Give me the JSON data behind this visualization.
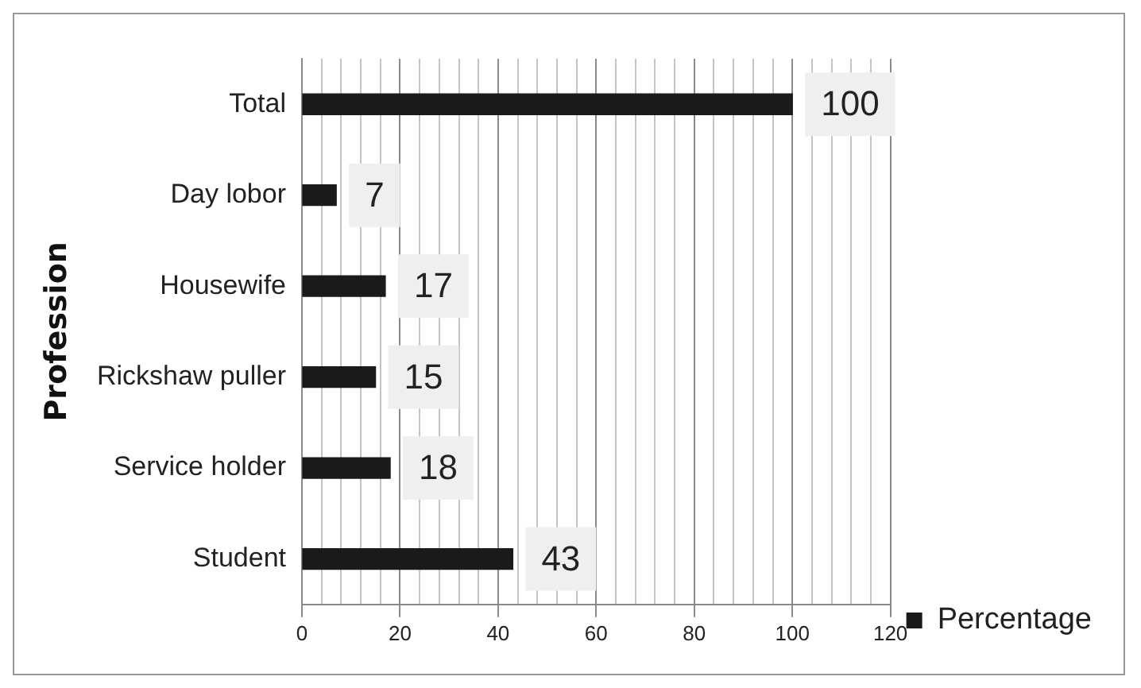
{
  "chart_data": {
    "type": "bar",
    "orientation": "horizontal",
    "ylabel": "Profession",
    "categories": [
      "Total",
      "Day lobor",
      "Housewife",
      "Rickshaw puller",
      "Service holder",
      "Student"
    ],
    "series": [
      {
        "name": "Percentage",
        "color": "#1a1a1a",
        "values": [
          100,
          7,
          17,
          15,
          18,
          43
        ]
      }
    ],
    "xlim": [
      0,
      120
    ],
    "xticks": [
      0,
      {
        "value": 4,
        "label": null
      },
      {
        "value": 8,
        "label": null
      },
      {
        "value": 12,
        "label": null
      },
      {
        "value": 16,
        "label": null
      },
      20,
      {
        "value": 24,
        "label": null
      },
      {
        "value": 28,
        "label": null
      },
      {
        "value": 32,
        "label": null
      },
      {
        "value": 36,
        "label": null
      },
      40,
      {
        "value": 44,
        "label": null
      },
      {
        "value": 48,
        "label": null
      },
      {
        "value": 52,
        "label": null
      },
      {
        "value": 56,
        "label": null
      },
      60,
      {
        "value": 64,
        "label": null
      },
      {
        "value": 68,
        "label": null
      },
      {
        "value": 72,
        "label": null
      },
      {
        "value": 76,
        "label": null
      },
      80,
      {
        "value": 84,
        "label": null
      },
      {
        "value": 88,
        "label": null
      },
      {
        "value": 92,
        "label": null
      },
      {
        "value": 96,
        "label": null
      },
      100,
      {
        "value": 104,
        "label": null
      },
      {
        "value": 108,
        "label": null
      },
      {
        "value": 112,
        "label": null
      },
      {
        "value": 116,
        "label": null
      },
      120
    ],
    "grid": "x",
    "legend": "bottom right",
    "data_labels": true
  }
}
